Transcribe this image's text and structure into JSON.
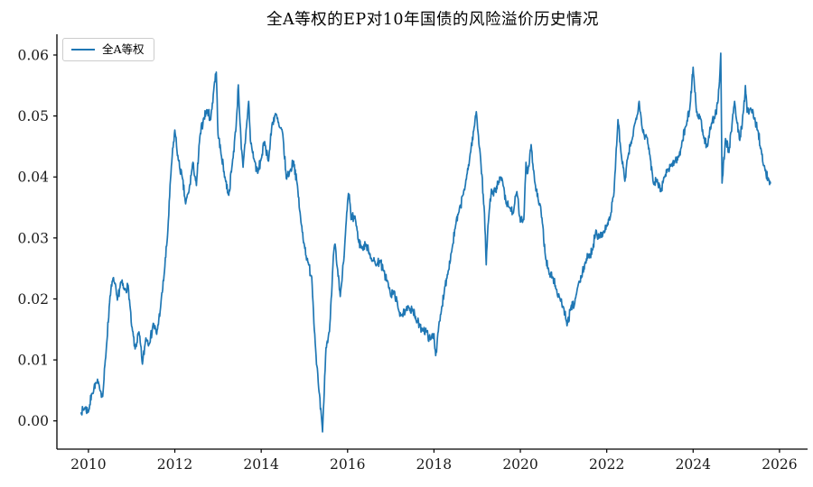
{
  "chart": {
    "title": "全A等权的EP对10年国债的风险溢价历史情况",
    "legend": {
      "label": "全A等权",
      "position": "upper left"
    },
    "colors": {
      "line": "#1f77b4",
      "axis": "#000000",
      "tick_text": "#1a1a1a",
      "background": "#ffffff",
      "legend_border": "#cccccc"
    }
  },
  "chart_data": {
    "type": "line",
    "title": "全A等权的EP对10年国债的风险溢价历史情况",
    "xlabel": "",
    "ylabel": "",
    "grid": false,
    "legend_position": "upper left",
    "x_ticks": [
      2010,
      2012,
      2014,
      2016,
      2018,
      2020,
      2022,
      2024,
      2026
    ],
    "y_ticks": [
      0.0,
      0.01,
      0.02,
      0.03,
      0.04,
      0.05,
      0.06
    ],
    "xlim": [
      2009.27,
      2026.65
    ],
    "ylim": [
      -0.00463,
      0.0634
    ],
    "series": [
      {
        "name": "全A等权",
        "color": "#1f77b4",
        "x": [
          2009.83,
          2009.92,
          2010.0,
          2010.08,
          2010.17,
          2010.25,
          2010.33,
          2010.42,
          2010.5,
          2010.58,
          2010.67,
          2010.75,
          2010.83,
          2010.92,
          2011.0,
          2011.08,
          2011.17,
          2011.25,
          2011.33,
          2011.42,
          2011.5,
          2011.58,
          2011.67,
          2011.75,
          2011.83,
          2011.92,
          2012.0,
          2012.08,
          2012.17,
          2012.25,
          2012.33,
          2012.42,
          2012.5,
          2012.58,
          2012.67,
          2012.75,
          2012.83,
          2012.92,
          2012.96,
          2013.0,
          2013.08,
          2013.17,
          2013.25,
          2013.33,
          2013.42,
          2013.47,
          2013.54,
          2013.58,
          2013.67,
          2013.71,
          2013.75,
          2013.83,
          2013.92,
          2014.0,
          2014.08,
          2014.17,
          2014.25,
          2014.33,
          2014.42,
          2014.5,
          2014.58,
          2014.67,
          2014.75,
          2014.83,
          2014.92,
          2015.0,
          2015.08,
          2015.17,
          2015.25,
          2015.33,
          2015.42,
          2015.5,
          2015.58,
          2015.67,
          2015.71,
          2015.75,
          2015.83,
          2015.92,
          2016.0,
          2016.04,
          2016.08,
          2016.17,
          2016.25,
          2016.33,
          2016.42,
          2016.5,
          2016.58,
          2016.67,
          2016.75,
          2016.83,
          2016.92,
          2017.0,
          2017.08,
          2017.17,
          2017.25,
          2017.33,
          2017.42,
          2017.5,
          2017.58,
          2017.67,
          2017.75,
          2017.83,
          2017.92,
          2018.0,
          2018.04,
          2018.08,
          2018.17,
          2018.25,
          2018.33,
          2018.42,
          2018.5,
          2018.58,
          2018.67,
          2018.75,
          2018.83,
          2018.92,
          2018.98,
          2019.08,
          2019.17,
          2019.21,
          2019.25,
          2019.33,
          2019.42,
          2019.5,
          2019.58,
          2019.67,
          2019.75,
          2019.83,
          2019.92,
          2020.0,
          2020.08,
          2020.13,
          2020.17,
          2020.25,
          2020.33,
          2020.42,
          2020.5,
          2020.58,
          2020.67,
          2020.75,
          2020.83,
          2020.92,
          2021.0,
          2021.08,
          2021.17,
          2021.25,
          2021.33,
          2021.42,
          2021.5,
          2021.58,
          2021.67,
          2021.75,
          2021.83,
          2021.92,
          2022.0,
          2022.08,
          2022.17,
          2022.26,
          2022.33,
          2022.42,
          2022.5,
          2022.58,
          2022.67,
          2022.75,
          2022.83,
          2022.92,
          2023.0,
          2023.08,
          2023.17,
          2023.25,
          2023.33,
          2023.42,
          2023.5,
          2023.58,
          2023.67,
          2023.75,
          2023.83,
          2023.92,
          2024.0,
          2024.08,
          2024.17,
          2024.25,
          2024.33,
          2024.42,
          2024.5,
          2024.58,
          2024.64,
          2024.67,
          2024.75,
          2024.83,
          2024.92,
          2024.96,
          2025.0,
          2025.08,
          2025.17,
          2025.21,
          2025.25,
          2025.33,
          2025.42,
          2025.5,
          2025.58,
          2025.67,
          2025.75,
          2025.79
        ],
        "y": [
          0.0013,
          0.0022,
          0.0015,
          0.0045,
          0.0062,
          0.0058,
          0.004,
          0.0125,
          0.0205,
          0.0235,
          0.0198,
          0.0228,
          0.0215,
          0.0222,
          0.0155,
          0.0118,
          0.0146,
          0.0093,
          0.0136,
          0.0128,
          0.016,
          0.0142,
          0.0186,
          0.0238,
          0.0302,
          0.0418,
          0.0477,
          0.0428,
          0.04,
          0.0356,
          0.0378,
          0.0424,
          0.0386,
          0.0466,
          0.0497,
          0.051,
          0.0494,
          0.0556,
          0.0572,
          0.047,
          0.0434,
          0.0396,
          0.037,
          0.0421,
          0.0484,
          0.0551,
          0.0446,
          0.0416,
          0.0492,
          0.0524,
          0.046,
          0.043,
          0.0406,
          0.043,
          0.0458,
          0.0426,
          0.0486,
          0.0504,
          0.0482,
          0.047,
          0.0398,
          0.041,
          0.0426,
          0.039,
          0.0326,
          0.0288,
          0.026,
          0.0236,
          0.0128,
          0.0054,
          -0.0018,
          0.012,
          0.0146,
          0.027,
          0.029,
          0.0256,
          0.0204,
          0.027,
          0.036,
          0.0371,
          0.033,
          0.0336,
          0.0296,
          0.0283,
          0.029,
          0.0276,
          0.0263,
          0.0256,
          0.0263,
          0.0246,
          0.023,
          0.0204,
          0.0213,
          0.0184,
          0.0174,
          0.0177,
          0.0186,
          0.0184,
          0.0166,
          0.0156,
          0.015,
          0.0146,
          0.0133,
          0.0143,
          0.0107,
          0.0136,
          0.018,
          0.022,
          0.0246,
          0.0283,
          0.032,
          0.0343,
          0.037,
          0.0396,
          0.0433,
          0.0476,
          0.0507,
          0.043,
          0.034,
          0.0256,
          0.032,
          0.038,
          0.0376,
          0.0393,
          0.0396,
          0.0356,
          0.035,
          0.034,
          0.0376,
          0.0326,
          0.033,
          0.0424,
          0.0406,
          0.0453,
          0.0393,
          0.036,
          0.0333,
          0.027,
          0.024,
          0.0236,
          0.0216,
          0.02,
          0.0186,
          0.0156,
          0.0186,
          0.019,
          0.022,
          0.0236,
          0.026,
          0.027,
          0.028,
          0.0313,
          0.03,
          0.031,
          0.032,
          0.0333,
          0.0376,
          0.0494,
          0.044,
          0.0393,
          0.0436,
          0.046,
          0.0493,
          0.0524,
          0.0476,
          0.0466,
          0.0436,
          0.039,
          0.0396,
          0.0376,
          0.04,
          0.0413,
          0.042,
          0.0426,
          0.0433,
          0.046,
          0.0483,
          0.051,
          0.058,
          0.0506,
          0.0496,
          0.0463,
          0.045,
          0.0486,
          0.0496,
          0.0526,
          0.0603,
          0.039,
          0.0463,
          0.044,
          0.0503,
          0.0524,
          0.0496,
          0.046,
          0.051,
          0.055,
          0.0506,
          0.0513,
          0.0496,
          0.0476,
          0.0443,
          0.041,
          0.0396,
          0.039
        ]
      }
    ]
  }
}
